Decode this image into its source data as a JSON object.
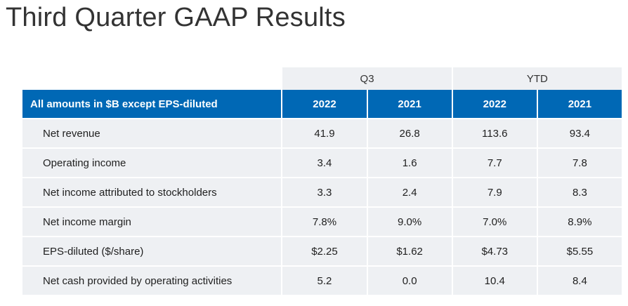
{
  "title": "Third Quarter GAAP Results",
  "table": {
    "groups": [
      "Q3",
      "YTD"
    ],
    "header_label": "All amounts in $B except EPS-diluted",
    "years": [
      "2022",
      "2021",
      "2022",
      "2021"
    ],
    "rows": [
      {
        "label": "Net revenue",
        "values": [
          "41.9",
          "26.8",
          "113.6",
          "93.4"
        ]
      },
      {
        "label": "Operating income",
        "values": [
          "3.4",
          "1.6",
          "7.7",
          "7.8"
        ]
      },
      {
        "label": "Net income attributed to stockholders",
        "values": [
          "3.3",
          "2.4",
          "7.9",
          "8.3"
        ]
      },
      {
        "label": "Net income margin",
        "values": [
          "7.8%",
          "9.0%",
          "7.0%",
          "8.9%"
        ]
      },
      {
        "label": "EPS-diluted ($/share)",
        "values": [
          "$2.25",
          "$1.62",
          "$4.73",
          "$5.55"
        ]
      },
      {
        "label": "Net cash provided by operating activities",
        "values": [
          "5.2",
          "0.0",
          "10.4",
          "8.4"
        ]
      }
    ]
  }
}
